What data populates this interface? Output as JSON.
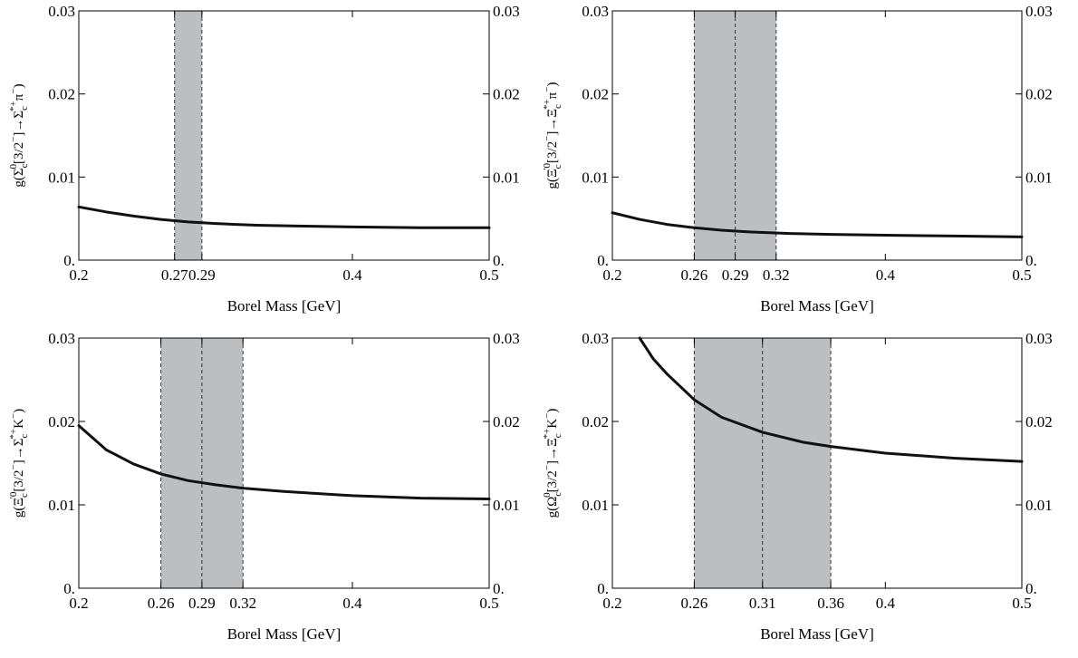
{
  "chart_data": [
    {
      "type": "line",
      "panel": "top-left",
      "ylabel_parts": [
        "g(",
        "Σ",
        "c",
        "0",
        "[3/2",
        "−",
        "]→",
        "Σ",
        "c",
        "*+",
        "π",
        "−",
        ")"
      ],
      "xlabel": "Borel Mass  [GeV]",
      "xlim": [
        0.2,
        0.5
      ],
      "ylim": [
        0,
        0.03
      ],
      "x_ticks": [
        0.2,
        0.27,
        0.29,
        0.4,
        0.5
      ],
      "x_tick_labels": [
        "0.2",
        "0.27",
        "0.29",
        "0.4",
        "0.5"
      ],
      "y_ticks": [
        0,
        0.01,
        0.02,
        0.03
      ],
      "y_tick_labels": [
        "0.",
        "0.01",
        "0.02",
        "0.03"
      ],
      "band": [
        0.27,
        0.29
      ],
      "band_lines": [
        0.27,
        0.29
      ],
      "series": [
        {
          "x": [
            0.2,
            0.22,
            0.24,
            0.26,
            0.28,
            0.3,
            0.33,
            0.36,
            0.4,
            0.45,
            0.5
          ],
          "y": [
            0.0064,
            0.0058,
            0.0053,
            0.0049,
            0.0046,
            0.0044,
            0.0042,
            0.0041,
            0.004,
            0.0039,
            0.0039
          ]
        }
      ]
    },
    {
      "type": "line",
      "panel": "top-right",
      "ylabel_parts": [
        "g(",
        "Ξ",
        "c",
        "'0",
        "[3/2",
        "−",
        "]→",
        "Ξ",
        "c",
        "*+",
        "π",
        "−",
        ")"
      ],
      "xlabel": "Borel Mass  [GeV]",
      "xlim": [
        0.2,
        0.5
      ],
      "ylim": [
        0,
        0.03
      ],
      "x_ticks": [
        0.2,
        0.26,
        0.29,
        0.32,
        0.4,
        0.5
      ],
      "x_tick_labels": [
        "0.2",
        "0.26",
        "0.29",
        "0.32",
        "0.4",
        "0.5"
      ],
      "y_ticks": [
        0,
        0.01,
        0.02,
        0.03
      ],
      "y_tick_labels": [
        "0.",
        "0.01",
        "0.02",
        "0.03"
      ],
      "band": [
        0.26,
        0.32
      ],
      "band_lines": [
        0.26,
        0.29,
        0.32
      ],
      "series": [
        {
          "x": [
            0.2,
            0.22,
            0.24,
            0.26,
            0.28,
            0.3,
            0.33,
            0.36,
            0.4,
            0.45,
            0.5
          ],
          "y": [
            0.0057,
            0.0049,
            0.0043,
            0.0039,
            0.0036,
            0.0034,
            0.0032,
            0.0031,
            0.003,
            0.0029,
            0.0028
          ]
        }
      ]
    },
    {
      "type": "line",
      "panel": "bottom-left",
      "ylabel_parts": [
        "g(",
        "Ξ",
        "c",
        "'0",
        "[3/2",
        "−",
        "]→",
        "Σ",
        "c",
        "*+",
        "K",
        "−",
        ")"
      ],
      "xlabel": "Borel Mass  [GeV]",
      "xlim": [
        0.2,
        0.5
      ],
      "ylim": [
        0,
        0.03
      ],
      "x_ticks": [
        0.2,
        0.26,
        0.29,
        0.32,
        0.4,
        0.5
      ],
      "x_tick_labels": [
        "0.2",
        "0.26",
        "0.29",
        "0.32",
        "0.4",
        "0.5"
      ],
      "y_ticks": [
        0,
        0.01,
        0.02,
        0.03
      ],
      "y_tick_labels": [
        "0.",
        "0.01",
        "0.02",
        "0.03"
      ],
      "band": [
        0.26,
        0.32
      ],
      "band_lines": [
        0.26,
        0.29,
        0.32
      ],
      "series": [
        {
          "x": [
            0.2,
            0.22,
            0.24,
            0.26,
            0.28,
            0.3,
            0.32,
            0.35,
            0.4,
            0.45,
            0.5
          ],
          "y": [
            0.0195,
            0.0166,
            0.0149,
            0.0137,
            0.0129,
            0.0124,
            0.012,
            0.0116,
            0.0111,
            0.0108,
            0.0107
          ]
        }
      ]
    },
    {
      "type": "line",
      "panel": "bottom-right",
      "ylabel_parts": [
        "g(",
        "Ω",
        "c",
        "0",
        "[3/2",
        "−",
        "]→",
        "Ξ",
        "c",
        "*+",
        "K",
        "−",
        ")"
      ],
      "xlabel": "Borel Mass  [GeV]",
      "xlim": [
        0.2,
        0.5
      ],
      "ylim": [
        0,
        0.03
      ],
      "x_ticks": [
        0.2,
        0.26,
        0.31,
        0.36,
        0.4,
        0.5
      ],
      "x_tick_labels": [
        "0.2",
        "0.26",
        "0.31",
        "0.36",
        "0.4",
        "0.5"
      ],
      "y_ticks": [
        0,
        0.01,
        0.02,
        0.03
      ],
      "y_tick_labels": [
        "0.",
        "0.01",
        "0.02",
        "0.03"
      ],
      "band": [
        0.26,
        0.36
      ],
      "band_lines": [
        0.26,
        0.31,
        0.36
      ],
      "series": [
        {
          "x": [
            0.22,
            0.23,
            0.24,
            0.26,
            0.28,
            0.31,
            0.34,
            0.36,
            0.4,
            0.45,
            0.5
          ],
          "y": [
            0.03,
            0.0275,
            0.0257,
            0.0226,
            0.0205,
            0.0187,
            0.0175,
            0.017,
            0.0162,
            0.0156,
            0.0152
          ]
        }
      ]
    }
  ]
}
